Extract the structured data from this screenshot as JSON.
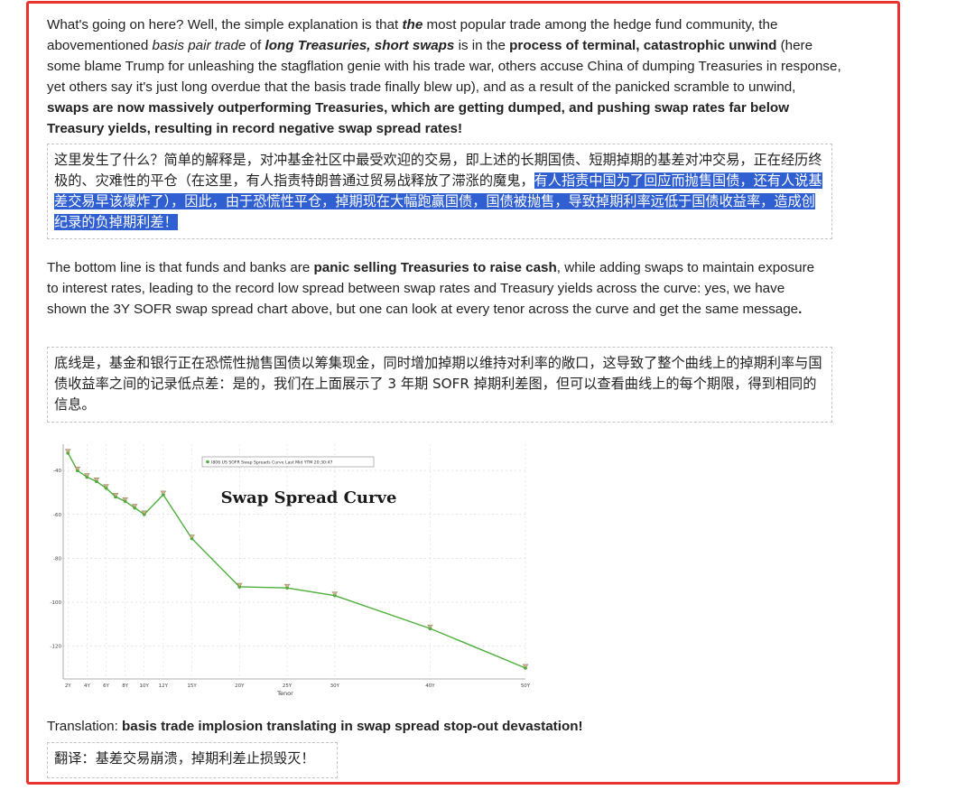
{
  "article": {
    "p1": {
      "s1": "What's going on here? Well, the simple explanation is that ",
      "s2": "the",
      "s3": " most popular trade among the hedge fund community, the abovementioned ",
      "s4": "basis pair trade",
      "s5": " of ",
      "s6": "long Treasuries, short swaps",
      "s7": " is in the ",
      "s8": "process of terminal, catastrophic unwind",
      "s9": " (here some blame Trump for unleashing the stagflation genie with his trade war, others accuse China of dumping Treasuries in response, yet others say it's just long overdue that the basis trade finally blew up), and as a result of the panicked scramble to unwind, ",
      "s10": "swaps are now massively outperforming Treasuries, which are getting dumped, and pushing swap rates far below Treasury yields, resulting in record negative swap spread rates!"
    },
    "zh1": {
      "plain": "这里发生了什么？简单的解释是，对冲基金社区中最受欢迎的交易，即上述的长期国债、短期掉期的基差对冲交易，正在经历终极的、灾难性的平仓（在这里，有人指责特朗普通过贸易战释放了滞涨的魔鬼，",
      "highlight": "有人指责中国为了回应而抛售国债，还有人说基差交易早该爆炸了），因此，由于恐慌性平仓，掉期现在大幅跑赢国债，国债被抛售，导致掉期利率远低于国债收益率，造成创纪录的负掉期利差！"
    },
    "p2": {
      "s1": "The bottom line is that funds and banks are ",
      "s2": "panic selling Treasuries to raise cash",
      "s3": ", while adding swaps to maintain exposure to interest rates, leading to the record low spread between swap rates and Treasury yields across the curve: yes, we have shown the 3Y SOFR swap spread chart above, but one can look at every tenor across the curve and get the same message",
      "s4": "."
    },
    "zh2": "底线是，基金和银行正在恐慌性抛售国债以筹集现金，同时增加掉期以维持对利率的敞口，这导致了整个曲线上的掉期利率与国债收益率之间的记录低点差：是的，我们在上面展示了 3 年期 SOFR 掉期利差图，但可以查看曲线上的每个期限，得到相同的信息。",
    "p3": {
      "s1": "Translation: ",
      "s2": "basis trade implosion translating in swap spread stop-out devastation!"
    },
    "zh3": "翻译：基差交易崩溃，掉期利差止损毁灭！"
  },
  "chart_data": {
    "type": "line",
    "title": "Swap Spread Curve",
    "legend": "I806 US SOFR Swap Spreads Curve Last Mid YTM 20:30:47",
    "legend_position": "top-center",
    "xlabel": "Tenor",
    "ylabel": "",
    "x_ticks": [
      "2Y",
      "4Y",
      "6Y",
      "8Y",
      "10Y",
      "12Y",
      "15Y",
      "20Y",
      "25Y",
      "30Y",
      "40Y",
      "50Y"
    ],
    "y_ticks": [
      -40,
      -60,
      -80,
      -100,
      -120
    ],
    "ylim": [
      -135,
      -28
    ],
    "xlim": [
      1.5,
      50
    ],
    "grid": true,
    "line_color": "#4caf3a",
    "series": [
      {
        "x": [
          2,
          3,
          4,
          5,
          6,
          7,
          8,
          9,
          10,
          12,
          15,
          20,
          25,
          30,
          40,
          50
        ],
        "y": [
          -32,
          -40,
          -43,
          -45,
          -48,
          -52,
          -54,
          -57,
          -60,
          -51,
          -71,
          -93,
          -93.5,
          -97,
          -112,
          -130
        ]
      }
    ]
  }
}
